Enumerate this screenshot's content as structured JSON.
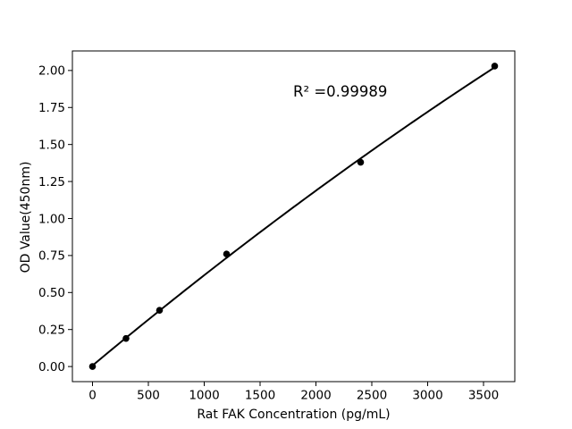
{
  "chart_data": {
    "type": "scatter",
    "title": "",
    "xlabel": "Rat FAK Concentration (pg/mL)",
    "ylabel": "OD Value(450nm)",
    "annotation_text": "R² =0.99989",
    "r_squared": 0.99989,
    "x": [
      0,
      300,
      600,
      1200,
      2400,
      3600
    ],
    "y": [
      0.0,
      0.19,
      0.38,
      0.76,
      1.38,
      2.03
    ],
    "fit_line": {
      "type": "quadratic",
      "a": 0.0069,
      "b": 0.00062949,
      "c": -1.9417e-08,
      "x_range": [
        0,
        3600
      ]
    },
    "xlim": [
      -180,
      3780
    ],
    "ylim": [
      -0.102,
      2.132
    ],
    "x_ticks": [
      0,
      500,
      1000,
      1500,
      2000,
      2500,
      3000,
      3500
    ],
    "x_tick_labels": [
      "0",
      "500",
      "1000",
      "1500",
      "2000",
      "2500",
      "3000",
      "3500"
    ],
    "y_ticks": [
      0,
      0.25,
      0.5,
      0.75,
      1,
      1.25,
      1.5,
      1.75,
      2
    ],
    "y_tick_labels": [
      "0.00",
      "0.25",
      "0.50",
      "0.75",
      "1.00",
      "1.25",
      "1.50",
      "1.75",
      "2.00"
    ],
    "grid": false,
    "legend": null,
    "colors": {
      "marker": "#000000",
      "line": "#000000",
      "axes": "#000000",
      "background": "#ffffff"
    }
  }
}
